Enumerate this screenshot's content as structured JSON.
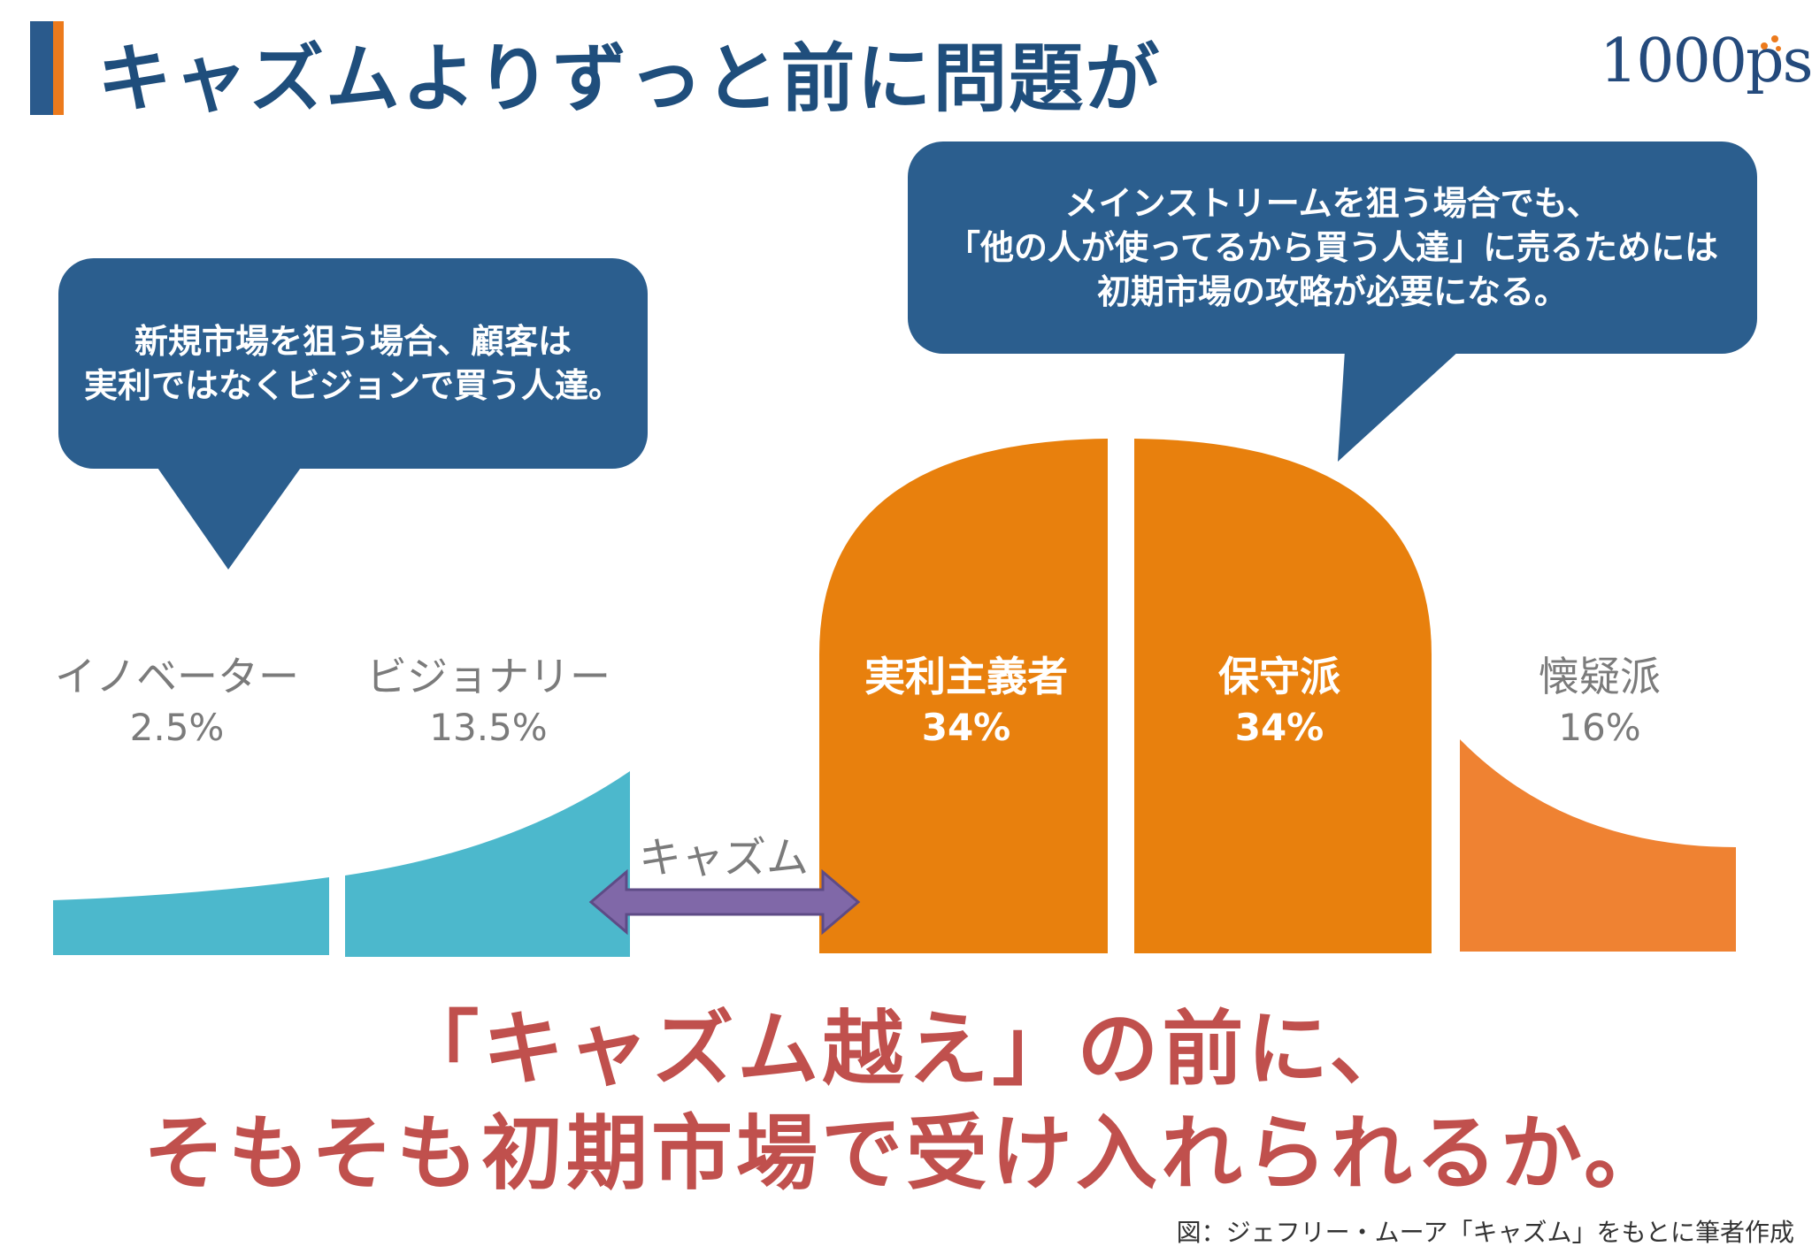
{
  "header": {
    "title": "キャズムよりずっと前に問題が",
    "logo_text": "1000ps"
  },
  "bubbles": {
    "left": {
      "lines": [
        "新規市場を狙う場合、顧客は",
        "実利ではなくビジョンで買う人達。"
      ]
    },
    "right": {
      "lines": [
        "メインストリームを狙う場合でも、",
        "「他の人が使ってるから買う人達」に売るためには",
        "初期市場の攻略が必要になる。"
      ]
    }
  },
  "segments": [
    {
      "name": "イノベーター",
      "percent": "2.5%",
      "color": "#4cb8cc"
    },
    {
      "name": "ビジョナリー",
      "percent": "13.5%",
      "color": "#4cb8cc"
    },
    {
      "name": "実利主義者",
      "percent": "34%",
      "color": "#e8800d"
    },
    {
      "name": "保守派",
      "percent": "34%",
      "color": "#e8800d"
    },
    {
      "name": "懐疑派",
      "percent": "16%",
      "color": "#ef8232"
    }
  ],
  "chasm": {
    "label": "キャズム",
    "arrow_color": "#8068a8"
  },
  "colors": {
    "bubble": "#2b5e8e",
    "title": "#1f4e7c",
    "conclusion": "#c0504d",
    "accent_blue": "#2a5a8c",
    "accent_orange": "#ec7a1c"
  },
  "conclusion": {
    "line1": "「キャズム越え」の前に、",
    "line2": "そもそも初期市場で受け入れられるか。"
  },
  "source": "図：ジェフリー・ムーア「キャズム」をもとに筆者作成"
}
